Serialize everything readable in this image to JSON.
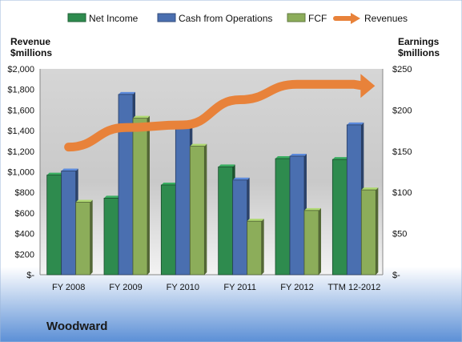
{
  "chart_data": {
    "type": "bar",
    "company": "Woodward",
    "categories": [
      "FY 2008",
      "FY 2009",
      "FY 2010",
      "FY 2011",
      "FY 2012",
      "TTM 12-2012"
    ],
    "y_left_label": [
      "Revenue",
      "$millions"
    ],
    "y_right_label": [
      "Earnings",
      "$millions"
    ],
    "y_left_ticks": [
      "$2,000",
      "$1,800",
      "$1,600",
      "$1,400",
      "$1,200",
      "$1,000",
      "$800",
      "$600",
      "$400",
      "$200",
      "$-"
    ],
    "y_right_ticks": [
      "$250",
      "$200",
      "$150",
      "$100",
      "$50",
      "$-"
    ],
    "y_right_range": [
      0,
      250
    ],
    "series": [
      {
        "name": "Net Income",
        "color": "#2e8b4e",
        "values": [
          121,
          93,
          109,
          131,
          141,
          140
        ]
      },
      {
        "name": "Cash from Operations",
        "color": "#4a6fb0",
        "values": [
          126,
          219,
          180,
          115,
          144,
          182
        ]
      },
      {
        "name": "FCF",
        "color": "#8cad5a",
        "values": [
          88,
          190,
          156,
          65,
          78,
          103
        ]
      }
    ],
    "line_series": {
      "name": "Revenues",
      "color": "#e8823a",
      "values": [
        1240,
        1430,
        1455,
        1700,
        1850,
        1850
      ]
    },
    "legend_position": "top",
    "grid": false
  }
}
